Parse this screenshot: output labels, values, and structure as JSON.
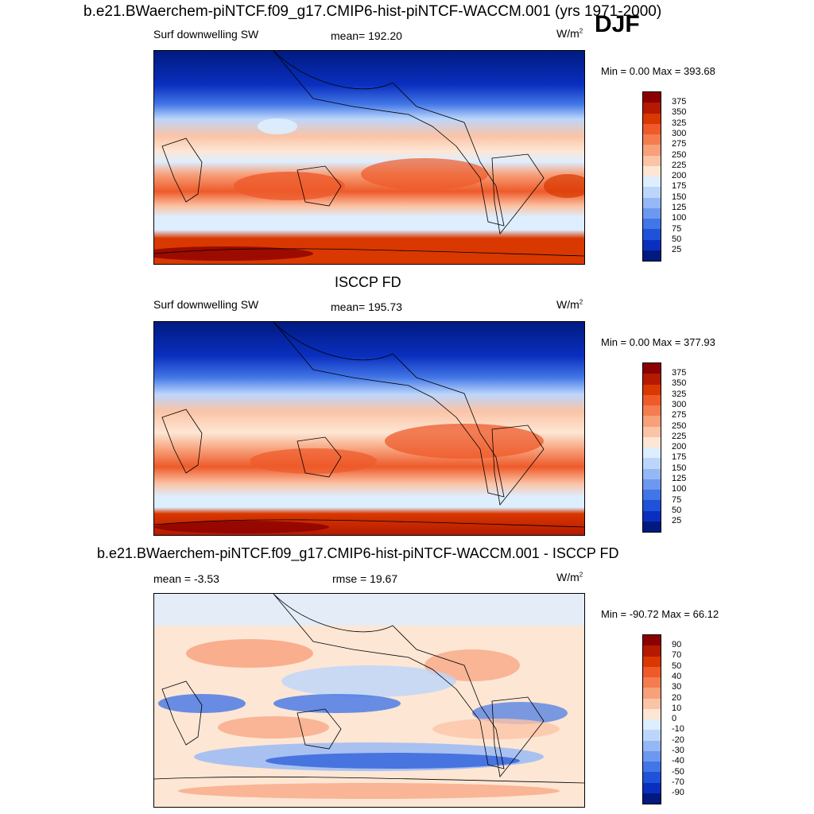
{
  "title_top": "b.e21.BWaerchem-piNTCF.f09_g17.CMIP6-hist-piNTCF-WACCM.001 (yrs 1971-2000)",
  "season": "DJF",
  "panels": [
    {
      "var_label": "Surf downwelling SW",
      "mean_text": "mean= 192.20",
      "units_base": "W/m",
      "units_exp": "2",
      "minmax_text": "Min =   0.00 Max = 393.68",
      "colorbar_labels": [
        "375",
        "350",
        "325",
        "300",
        "275",
        "250",
        "225",
        "200",
        "175",
        "150",
        "125",
        "100",
        "75",
        "50",
        "25"
      ],
      "colors": [
        "#8b0000",
        "#b51a00",
        "#d93800",
        "#ee5a2a",
        "#f47c4e",
        "#f7a07a",
        "#fbc4a6",
        "#fde6d4",
        "#ddeeff",
        "#bcd6fb",
        "#94b8f6",
        "#6c98ef",
        "#4276e6",
        "#1f52d8",
        "#0a2fbf",
        "#001a80"
      ]
    },
    {
      "title": "ISCCP FD",
      "var_label": "Surf downwelling SW",
      "mean_text": "mean= 195.73",
      "units_base": "W/m",
      "units_exp": "2",
      "minmax_text": "Min =   0.00 Max = 377.93",
      "colorbar_labels": [
        "375",
        "350",
        "325",
        "300",
        "275",
        "250",
        "225",
        "200",
        "175",
        "150",
        "125",
        "100",
        "75",
        "50",
        "25"
      ]
    },
    {
      "title": "b.e21.BWaerchem-piNTCF.f09_g17.CMIP6-hist-piNTCF-WACCM.001 - ISCCP FD",
      "mean_text": "mean =  -3.53",
      "rmse_text": "rmse =  19.67",
      "units_base": "W/m",
      "units_exp": "2",
      "minmax_text": "Min = -90.72 Max =  66.12",
      "colorbar_labels": [
        "90",
        "70",
        "50",
        "40",
        "30",
        "20",
        "10",
        "0",
        "-10",
        "-20",
        "-30",
        "-40",
        "-50",
        "-70",
        "-90"
      ]
    }
  ]
}
